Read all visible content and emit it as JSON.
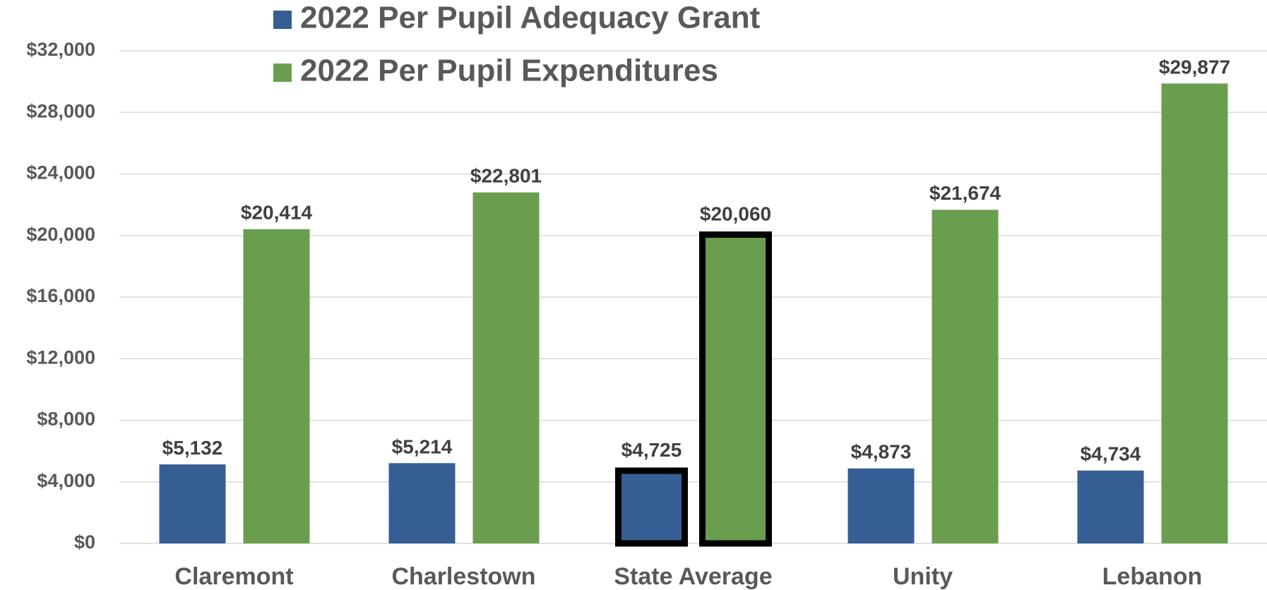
{
  "chart_data": {
    "type": "bar",
    "categories": [
      "Claremont",
      "Charlestown",
      "State Average",
      "Unity",
      "Lebanon"
    ],
    "series": [
      {
        "name": "2022 Per Pupil Adequacy Grant",
        "color": "#355f94",
        "values": [
          5132,
          5214,
          4725,
          4873,
          4734
        ],
        "value_labels": [
          "$5,132",
          "$5,214",
          "$4,725",
          "$4,873",
          "$4,734"
        ]
      },
      {
        "name": "2022 Per Pupil Expenditures",
        "color": "#6a9e4f",
        "values": [
          20414,
          22801,
          20060,
          21674,
          29877
        ],
        "value_labels": [
          "$20,414",
          "$22,801",
          "$20,060",
          "$21,674",
          "$29,877"
        ]
      }
    ],
    "ylim": [
      0,
      32000
    ],
    "yticks": [
      {
        "value": 0,
        "label": "$0"
      },
      {
        "value": 4000,
        "label": "$4,000"
      },
      {
        "value": 8000,
        "label": "$8,000"
      },
      {
        "value": 12000,
        "label": "$12,000"
      },
      {
        "value": 16000,
        "label": "$16,000"
      },
      {
        "value": 20000,
        "label": "$20,000"
      },
      {
        "value": 24000,
        "label": "$24,000"
      },
      {
        "value": 28000,
        "label": "$28,000"
      },
      {
        "value": 32000,
        "label": "$32,000"
      }
    ],
    "grid": true,
    "legend": "top",
    "highlight_index": 2,
    "highlight_color": "#000000"
  }
}
